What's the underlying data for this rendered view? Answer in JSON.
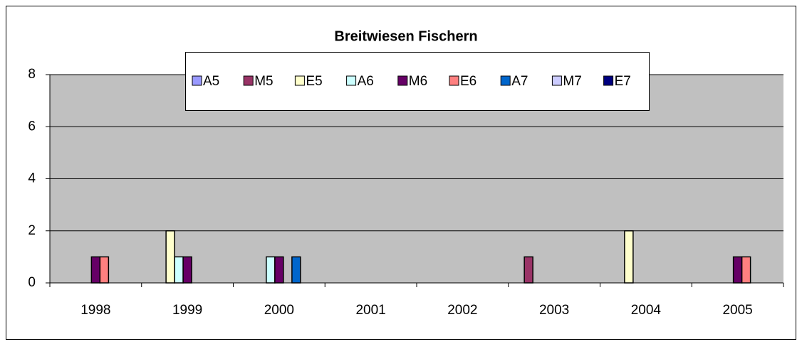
{
  "chart_data": {
    "type": "bar",
    "title": "Breitwiesen Fischern",
    "categories": [
      "1998",
      "1999",
      "2000",
      "2001",
      "2002",
      "2003",
      "2004",
      "2005"
    ],
    "series": [
      {
        "name": "A5",
        "color": "#9999ff",
        "values": [
          0,
          0,
          0,
          0,
          0,
          0,
          0,
          0
        ]
      },
      {
        "name": "M5",
        "color": "#993366",
        "values": [
          0,
          0,
          0,
          0,
          0,
          1,
          0,
          0
        ]
      },
      {
        "name": "E5",
        "color": "#ffffcc",
        "values": [
          0,
          2,
          0,
          0,
          0,
          0,
          2,
          0
        ]
      },
      {
        "name": "A6",
        "color": "#ccffff",
        "values": [
          0,
          1,
          1,
          0,
          0,
          0,
          0,
          0
        ]
      },
      {
        "name": "M6",
        "color": "#660066",
        "values": [
          1,
          1,
          1,
          0,
          0,
          0,
          0,
          1
        ]
      },
      {
        "name": "E6",
        "color": "#ff8080",
        "values": [
          1,
          0,
          0,
          0,
          0,
          0,
          0,
          1
        ]
      },
      {
        "name": "A7",
        "color": "#0066cc",
        "values": [
          0,
          0,
          1,
          0,
          0,
          0,
          0,
          0
        ]
      },
      {
        "name": "M7",
        "color": "#ccccff",
        "values": [
          0,
          0,
          0,
          0,
          0,
          0,
          0,
          0
        ]
      },
      {
        "name": "E7",
        "color": "#000080",
        "values": [
          0,
          0,
          0,
          0,
          0,
          0,
          0,
          0
        ]
      }
    ],
    "ylim": [
      0,
      8
    ],
    "yticks": [
      0,
      2,
      4,
      6,
      8
    ],
    "grid": true,
    "legend": "top"
  }
}
